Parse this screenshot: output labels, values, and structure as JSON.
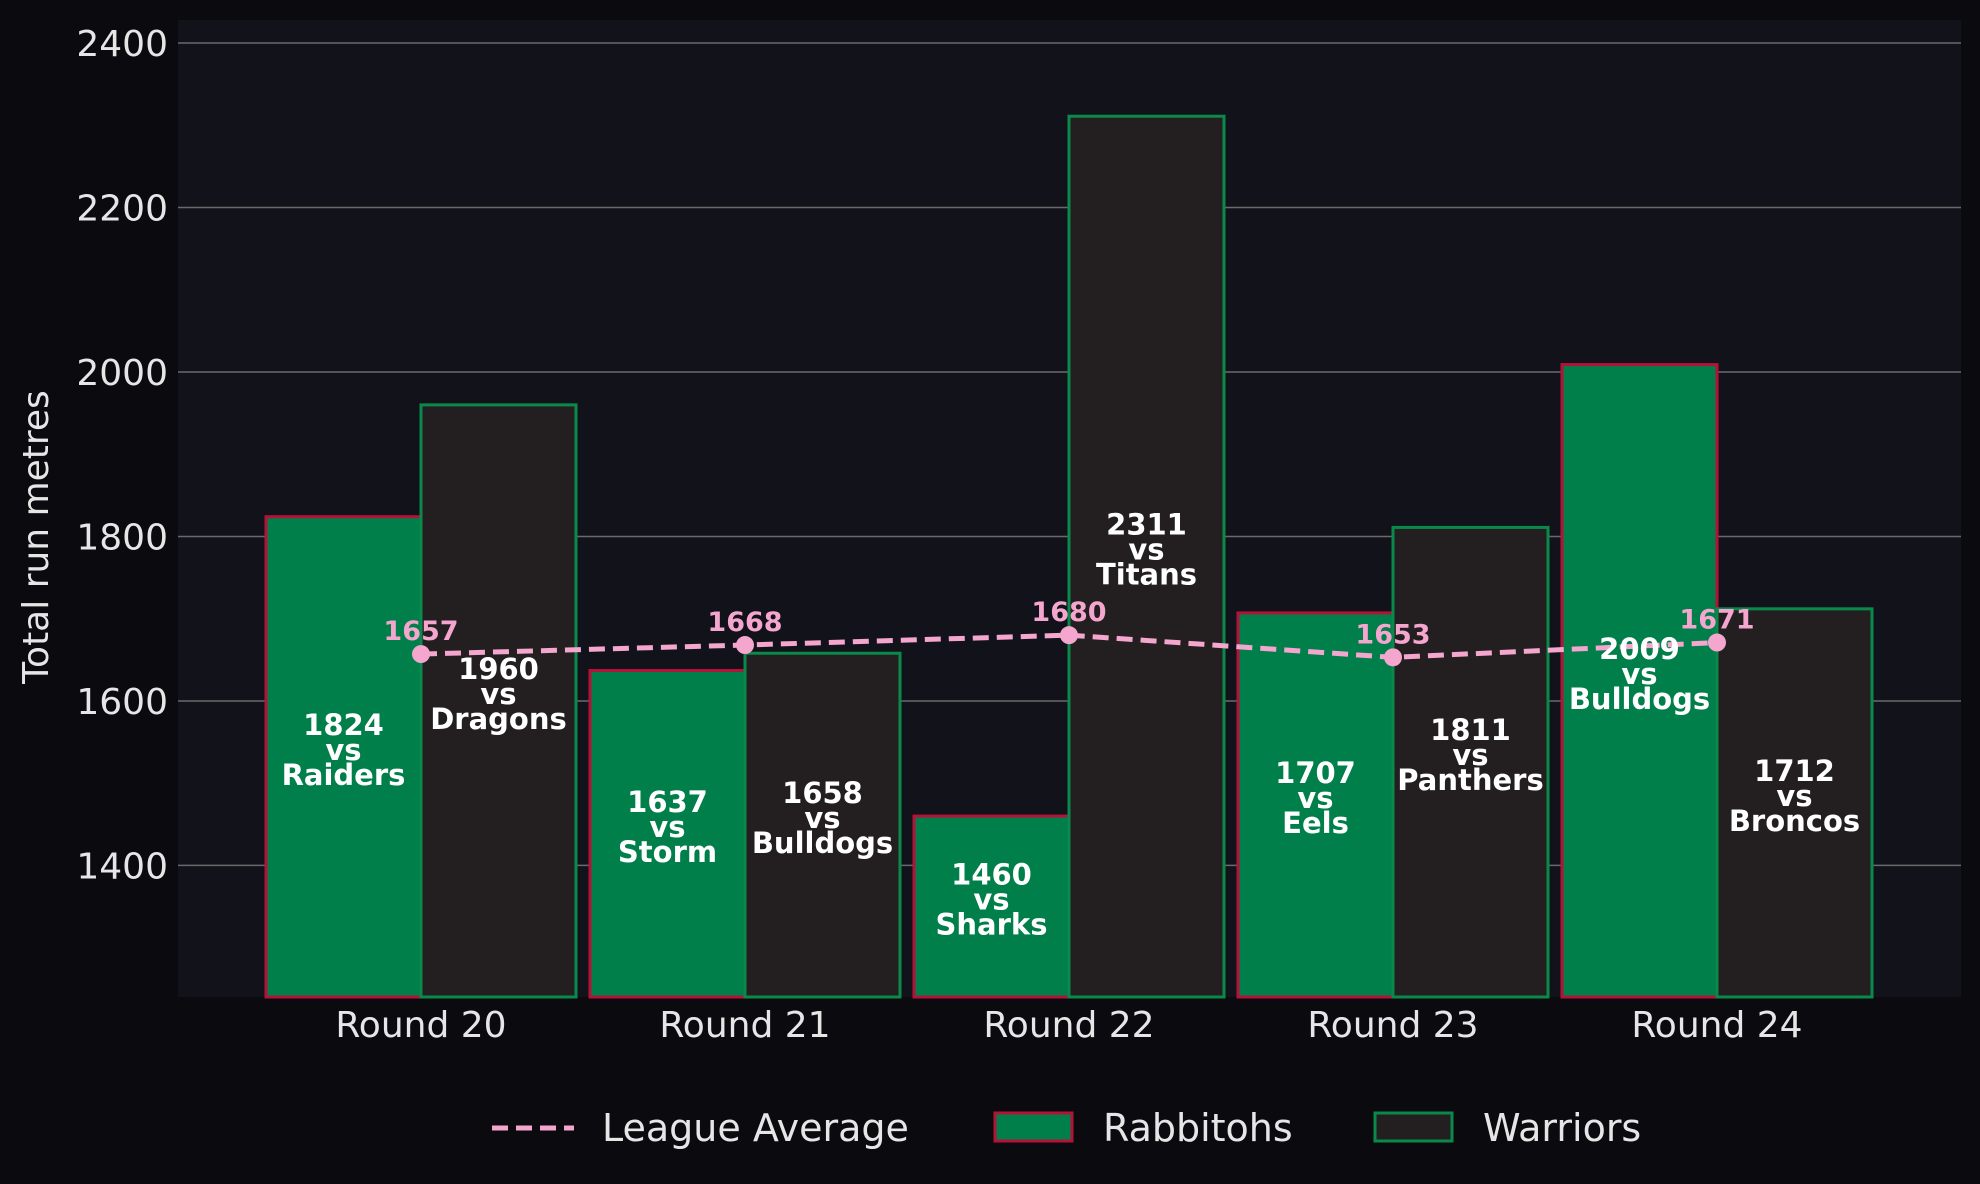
{
  "chart_data": {
    "type": "bar",
    "title": "",
    "xlabel": "",
    "ylabel": "Total run metres",
    "ylim": [
      1240,
      2428
    ],
    "yticks": [
      1400,
      1600,
      1800,
      2000,
      2200,
      2400
    ],
    "grid": "horizontal",
    "legend_position": "bottom-center",
    "categories": [
      "Round 20",
      "Round 21",
      "Round 22",
      "Round 23",
      "Round 24"
    ],
    "series": [
      {
        "name": "Rabbitohs",
        "fill": "#007f4a",
        "edge": "#b5123a",
        "values": [
          1824,
          1637,
          1460,
          1707,
          2009
        ],
        "opponents": [
          "Raiders",
          "Storm",
          "Sharks",
          "Eels",
          "Bulldogs"
        ]
      },
      {
        "name": "Warriors",
        "fill": "#231f20",
        "edge": "#0a8a4a",
        "values": [
          1960,
          1658,
          2311,
          1811,
          1712
        ],
        "opponents": [
          "Dragons",
          "Bulldogs",
          "Titans",
          "Panthers",
          "Broncos"
        ]
      }
    ],
    "average": {
      "name": "League Average",
      "color": "#f4a6cf",
      "style": "dashed",
      "values": [
        1657,
        1668,
        1680,
        1653,
        1671
      ]
    },
    "vs_text": "vs"
  },
  "colors": {
    "page_background": "#0b0b0f",
    "plot_background": "#12131a",
    "grid": "#6a6a6a",
    "text": "#e6e6e6"
  }
}
